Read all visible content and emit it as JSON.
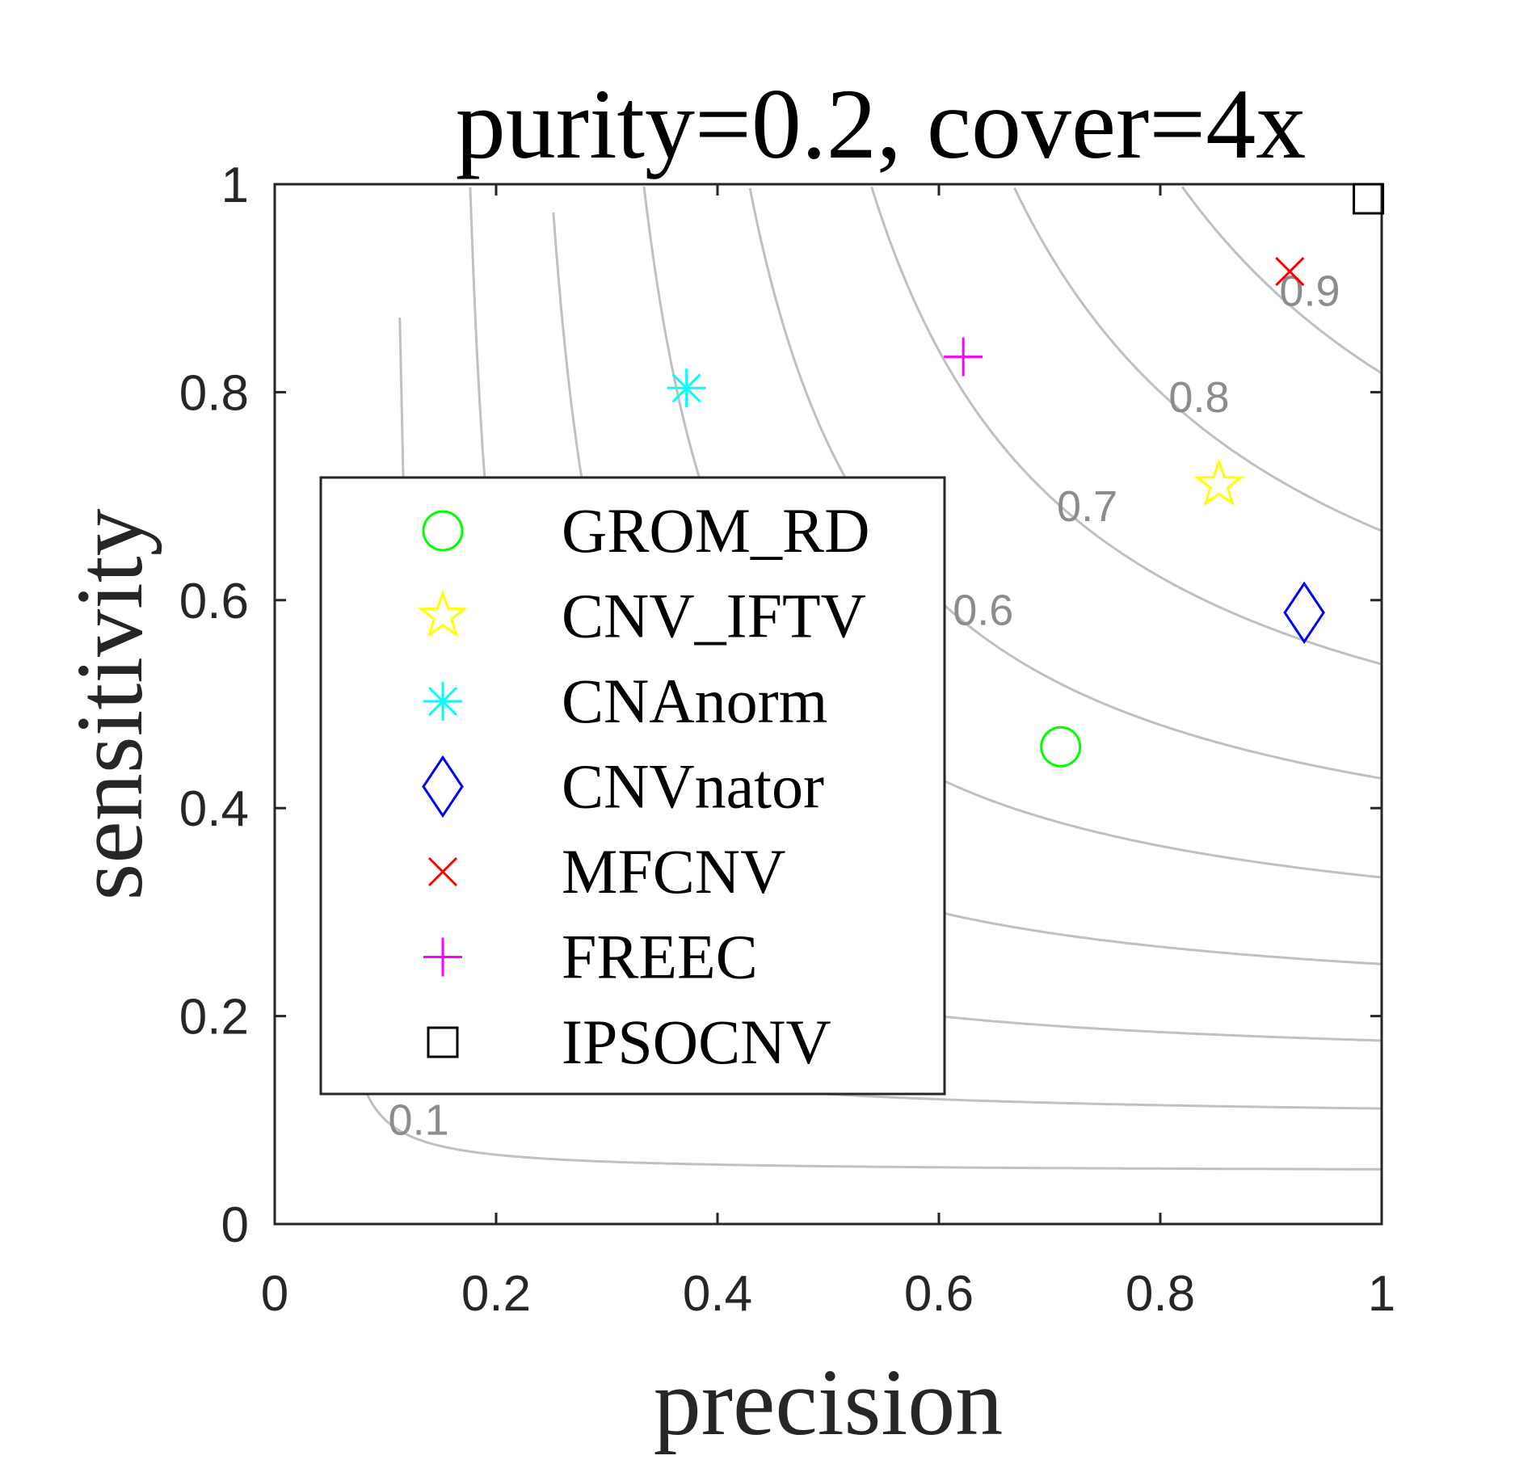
{
  "chart_data": {
    "type": "scatter",
    "title": "purity=0.2, cover=4x",
    "xlabel": "precision",
    "ylabel": "sensitivity",
    "xlim": [
      0,
      1
    ],
    "ylim": [
      0,
      1
    ],
    "x_ticks": [
      "0",
      "0.2",
      "0.4",
      "0.6",
      "0.8",
      "1"
    ],
    "y_ticks": [
      "0",
      "0.2",
      "0.4",
      "0.6",
      "0.8",
      "1"
    ],
    "grid": false,
    "background_contours": {
      "description_levels": [
        0.1,
        0.2,
        0.3,
        0.4,
        0.5,
        0.6,
        0.7,
        0.8,
        0.9
      ],
      "color": "#c0c0c0",
      "labels": [
        {
          "text": "0.1",
          "x": 0.13,
          "y": 0.1
        },
        {
          "text": "0.6",
          "x": 0.64,
          "y": 0.59
        },
        {
          "text": "0.7",
          "x": 0.734,
          "y": 0.69
        },
        {
          "text": "0.8",
          "x": 0.835,
          "y": 0.795
        },
        {
          "text": "0.9",
          "x": 0.935,
          "y": 0.897
        }
      ]
    },
    "legend_position": "center-left",
    "series": [
      {
        "name": "GROM_RD",
        "marker": "circle",
        "color": "#00ff00",
        "x": 0.71,
        "y": 0.459
      },
      {
        "name": "CNV_IFTV",
        "marker": "star",
        "color": "#ffff00",
        "x": 0.853,
        "y": 0.711
      },
      {
        "name": "CNAnorm",
        "marker": "asterisk",
        "color": "#00ffff",
        "x": 0.372,
        "y": 0.804
      },
      {
        "name": "CNVnator",
        "marker": "diamond",
        "color": "#0000ff",
        "x": 0.93,
        "y": 0.588
      },
      {
        "name": "MFCNV",
        "marker": "x",
        "color": "#ff0000",
        "x": 0.917,
        "y": 0.916
      },
      {
        "name": "FREEC",
        "marker": "plus",
        "color": "#ff00ff",
        "x": 0.622,
        "y": 0.834
      },
      {
        "name": "IPSOCNV",
        "marker": "square",
        "color": "#000000",
        "x": 0.988,
        "y": 0.986
      }
    ]
  }
}
